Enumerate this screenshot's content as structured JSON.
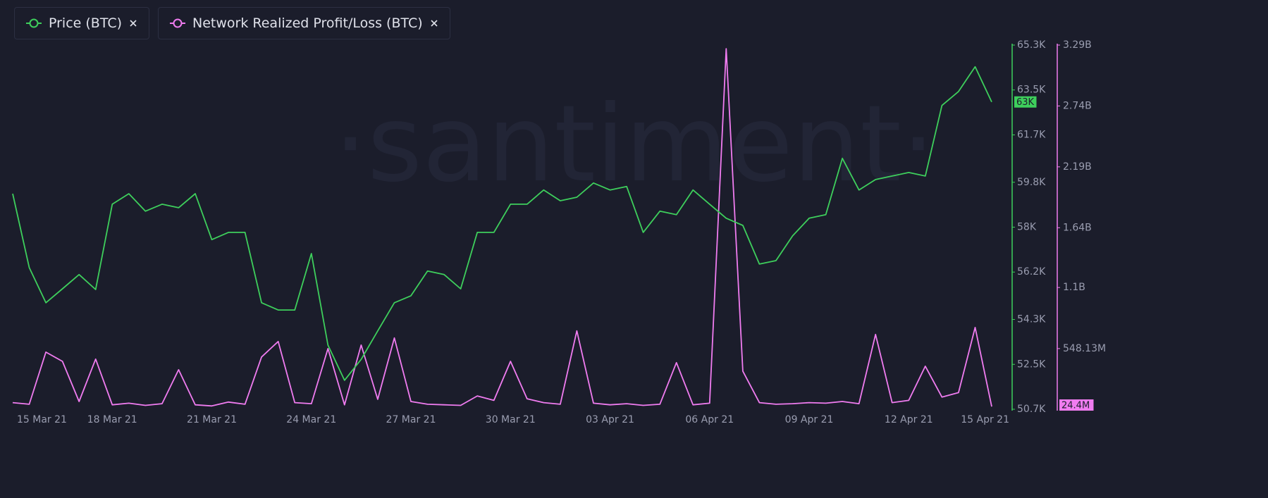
{
  "chart_data": {
    "type": "line",
    "watermark": "·santiment·",
    "categories": [
      "15 Mar 21",
      null,
      null,
      null,
      null,
      null,
      "18 Mar 21",
      null,
      null,
      null,
      null,
      null,
      "21 Mar 21",
      null,
      null,
      null,
      null,
      null,
      "24 Mar 21",
      null,
      null,
      null,
      null,
      null,
      "27 Mar 21",
      null,
      null,
      null,
      null,
      null,
      "30 Mar 21",
      null,
      null,
      null,
      null,
      null,
      "03 Apr 21",
      null,
      null,
      null,
      null,
      null,
      "06 Apr 21",
      null,
      null,
      null,
      null,
      null,
      "09 Apr 21",
      null,
      null,
      null,
      null,
      null,
      "12 Apr 21",
      null,
      null,
      null,
      null,
      "15 Apr 21"
    ],
    "series": [
      {
        "name": "Price (BTC)",
        "color": "#3ecf5c",
        "last_value_label": "63K",
        "values": [
          59340,
          56380,
          54970,
          55530,
          56100,
          55500,
          58920,
          59340,
          58640,
          58920,
          58780,
          59340,
          57500,
          57790,
          57790,
          54970,
          54680,
          54680,
          56940,
          53270,
          51860,
          52700,
          53840,
          54970,
          55250,
          56240,
          56100,
          55530,
          57790,
          57790,
          58920,
          58920,
          59490,
          59060,
          59200,
          59770,
          59490,
          59630,
          57790,
          58640,
          58500,
          59490,
          58920,
          58360,
          58070,
          56520,
          56660,
          57650,
          58360,
          58500,
          60760,
          59490,
          59910,
          60050,
          60190,
          60050,
          62880,
          63440,
          64430,
          63020
        ]
      },
      {
        "name": "Network Realized Profit/Loss (BTC)",
        "color": "#f07cf0",
        "axis": "y2",
        "last_value_label": "24.4M",
        "values": [
          60000000,
          45000000,
          516000000,
          433000000,
          70000000,
          453000000,
          40000000,
          55000000,
          35000000,
          50000000,
          357000000,
          40000000,
          30000000,
          65000000,
          45000000,
          472000000,
          612000000,
          60000000,
          50000000,
          548000000,
          40000000,
          580000000,
          90000000,
          644000000,
          70000000,
          45000000,
          40000000,
          35000000,
          120000000,
          80000000,
          433000000,
          95000000,
          60000000,
          45000000,
          708000000,
          55000000,
          40000000,
          50000000,
          35000000,
          45000000,
          421000000,
          40000000,
          55000000,
          3257000000,
          344000000,
          60000000,
          45000000,
          50000000,
          60000000,
          55000000,
          70000000,
          50000000,
          676000000,
          60000000,
          80000000,
          389000000,
          110000000,
          150000000,
          739000000,
          24400000
        ]
      }
    ],
    "ylim": [
      50700,
      65300
    ],
    "yticks": [
      {
        "value": 50700,
        "label": "50.7K"
      },
      {
        "value": 52500,
        "label": "52.5K"
      },
      {
        "value": 54300,
        "label": "54.3K"
      },
      {
        "value": 56200,
        "label": "56.2K"
      },
      {
        "value": 58000,
        "label": "58K"
      },
      {
        "value": 59800,
        "label": "59.8K"
      },
      {
        "value": 61700,
        "label": "61.7K"
      },
      {
        "value": 63500,
        "label": "63.5K"
      },
      {
        "value": 65300,
        "label": "65.3K"
      }
    ],
    "y2lim": [
      0,
      3290000000
    ],
    "y2ticks": [
      {
        "value": 548130000,
        "label": "548.13M"
      },
      {
        "value": 1100000000,
        "label": "1.1B"
      },
      {
        "value": 1640000000,
        "label": "1.64B"
      },
      {
        "value": 2190000000,
        "label": "2.19B"
      },
      {
        "value": 2740000000,
        "label": "2.74B"
      },
      {
        "value": 3290000000,
        "label": "3.29B"
      }
    ]
  }
}
